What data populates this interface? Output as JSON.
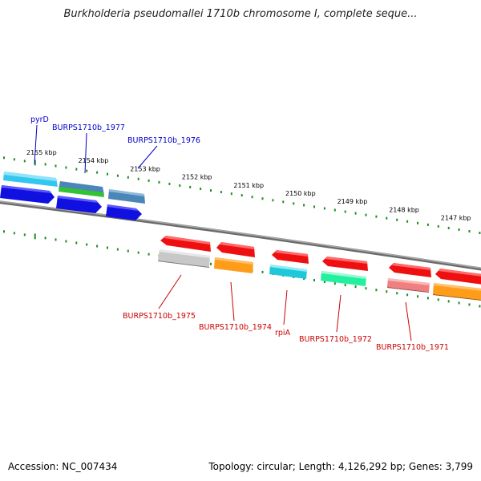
{
  "header": {
    "title": "Burkholderia pseudomallei 1710b chromosome I, complete seque..."
  },
  "footer": {
    "accession": "Accession: NC_007434",
    "stats": "Topology: circular; Length: 4,126,292 bp; Genes: 3,799"
  },
  "scale": {
    "labels": [
      "2155 kbp",
      "2154 kbp",
      "2153 kbp",
      "2152 kbp",
      "2151 kbp",
      "2150 kbp",
      "2149 kbp",
      "2148 kbp",
      "2147 kbp"
    ]
  },
  "colors": {
    "forward_label": "#0000cc",
    "reverse_label": "#cc0000",
    "tick": "#228b22",
    "backbone": "#888888"
  },
  "forward_genes": [
    {
      "label": "pyrD",
      "color": "#33c6ef"
    },
    {
      "label": "BURPS1710b_1977",
      "color": "#4a86b8"
    },
    {
      "label": "BURPS1710b_1976",
      "color": "#4a86b8"
    }
  ],
  "reverse_genes": [
    {
      "label": "BURPS1710b_1975",
      "color": "#c8c8c8"
    },
    {
      "label": "BURPS1710b_1974",
      "color": "#ff9c1a"
    },
    {
      "label": "rpiA",
      "color": "#1ec8d8"
    },
    {
      "label": "BURPS1710b_1972",
      "color": "#22f0a0"
    },
    {
      "label": "BURPS1710b_1971",
      "color": "#f08080"
    }
  ]
}
